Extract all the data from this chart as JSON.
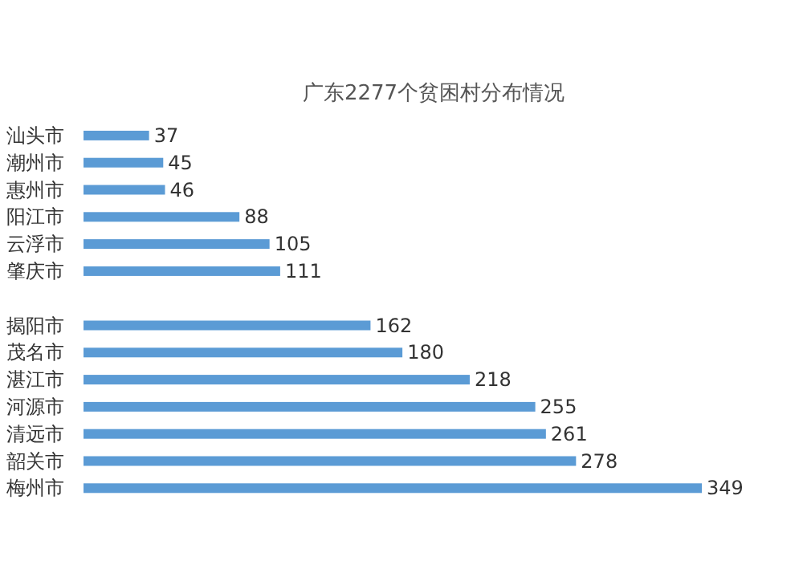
{
  "chart_data": {
    "type": "bar",
    "orientation": "horizontal",
    "title": "广东2277个贫困村分布情况",
    "categories": [
      "汕头市",
      "潮州市",
      "惠州市",
      "阳江市",
      "云浮市",
      "肇庆市",
      null,
      "揭阳市",
      "茂名市",
      "湛江市",
      "河源市",
      "清远市",
      "韶关市",
      "梅州市"
    ],
    "values": [
      37,
      45,
      46,
      88,
      105,
      111,
      null,
      162,
      180,
      218,
      255,
      261,
      278,
      349
    ],
    "color": "#5b9bd5",
    "data_labels": true
  }
}
